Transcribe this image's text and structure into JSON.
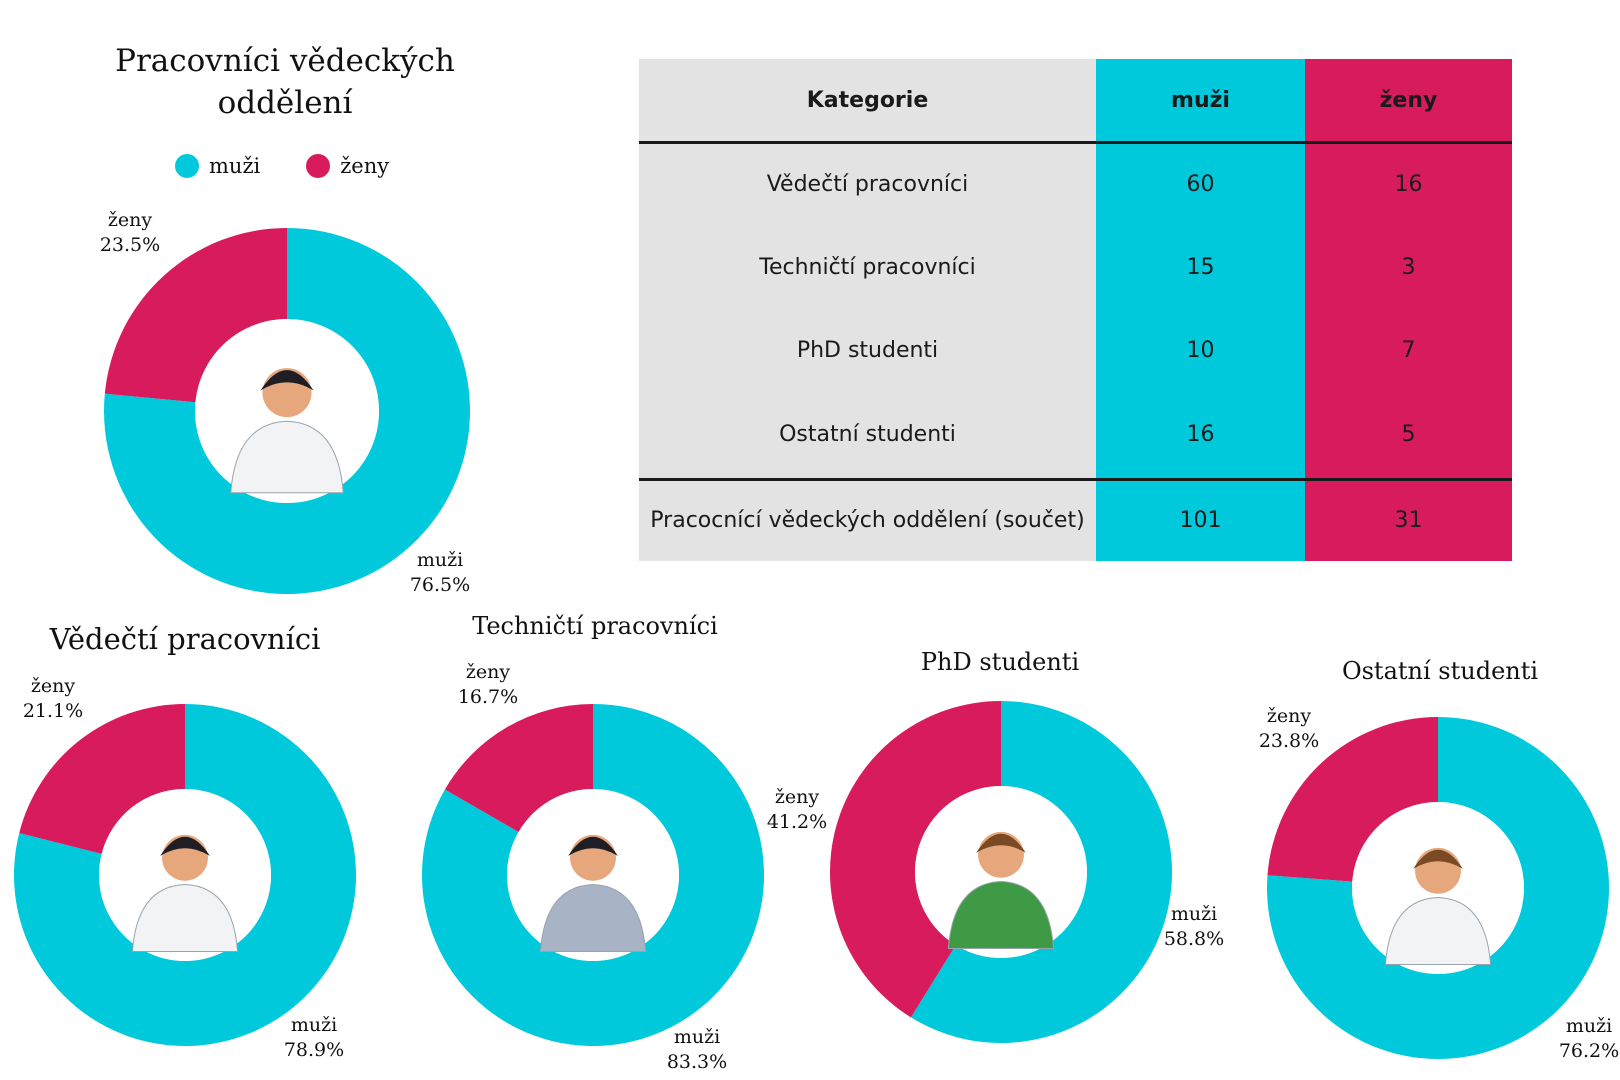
{
  "colors": {
    "muzi": "#00c9dc",
    "zeny": "#d81b5c",
    "table_bg": "#e3e3e3"
  },
  "main": {
    "title_line1": "Pracovníci vědeckých",
    "title_line2": "oddělení",
    "legend": [
      {
        "label": "muži",
        "color": "#00c9dc"
      },
      {
        "label": "ženy",
        "color": "#d81b5c"
      }
    ]
  },
  "table": {
    "headers": [
      "Kategorie",
      "muži",
      "ženy"
    ],
    "rows": [
      [
        "Vědečtí pracovníci",
        "60",
        "16"
      ],
      [
        "Techničtí pracovníci",
        "15",
        "3"
      ],
      [
        "PhD studenti",
        "10",
        "7"
      ],
      [
        "Ostatní studenti",
        "16",
        "5"
      ]
    ],
    "total": [
      "Pracocnící vědeckých oddělení (součet)",
      "101",
      "31"
    ]
  },
  "chart_data": [
    {
      "type": "pie",
      "donut": true,
      "title": "Pracovníci vědeckých oddělení",
      "categories": [
        "muži",
        "ženy"
      ],
      "values": [
        101,
        31
      ],
      "labels": [
        "muži 76.5%",
        "ženy 23.5%"
      ],
      "percent": [
        76.5,
        23.5
      ],
      "center_image": "scientist-woman-microscope",
      "legend": "top"
    },
    {
      "type": "pie",
      "donut": true,
      "title": "Vědečtí pracovníci",
      "categories": [
        "muži",
        "ženy"
      ],
      "values": [
        60,
        16
      ],
      "percent": [
        78.9,
        21.1
      ],
      "center_image": "scientist-man-flask"
    },
    {
      "type": "pie",
      "donut": true,
      "title": "Techničtí pracovníci",
      "categories": [
        "muži",
        "ženy"
      ],
      "values": [
        15,
        3
      ],
      "percent": [
        83.3,
        16.7
      ],
      "center_image": "technician-soldering"
    },
    {
      "type": "pie",
      "donut": true,
      "title": "PhD studenti",
      "categories": [
        "muži",
        "ženy"
      ],
      "values": [
        10,
        7
      ],
      "percent": [
        58.8,
        41.2
      ],
      "center_image": "student-blackboard"
    },
    {
      "type": "pie",
      "donut": true,
      "title": "Ostatní studenti",
      "categories": [
        "muži",
        "ženy"
      ],
      "values": [
        16,
        5
      ],
      "percent": [
        76.2,
        23.8
      ],
      "center_image": "kid-scientist"
    }
  ]
}
